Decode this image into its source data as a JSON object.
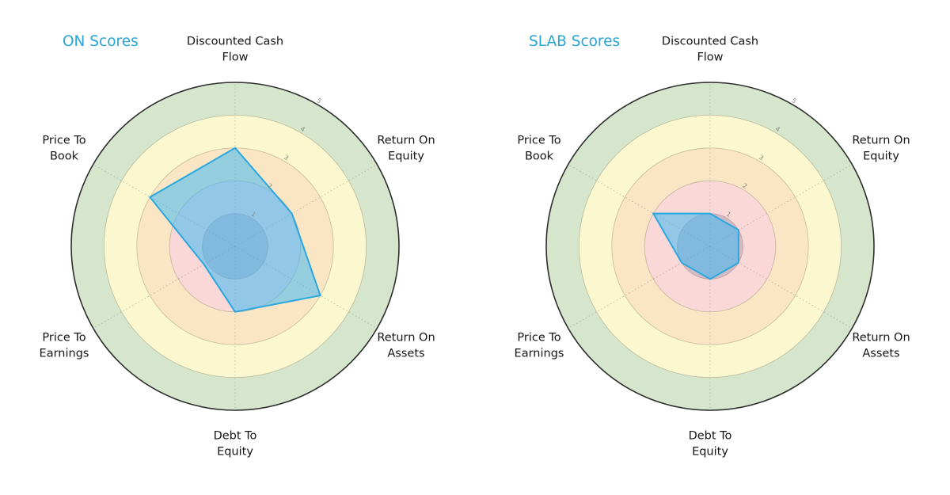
{
  "chart_data": {
    "type": "radar",
    "categories": [
      "Discounted Cash Flow",
      "Return On Equity",
      "Return On Assets",
      "Debt To Equity",
      "Price To Earnings",
      "Price To Book"
    ],
    "series": [
      {
        "name": "ON",
        "values": [
          3,
          2,
          3,
          2,
          1.1,
          3
        ]
      },
      {
        "name": "SLAB",
        "values": [
          1,
          1,
          1,
          1,
          1,
          2
        ]
      }
    ],
    "rlim": [
      0,
      5
    ],
    "rticks": [
      "1",
      "2",
      "3",
      "4",
      "5"
    ],
    "rtick_angle_deg": 30,
    "rings": [
      {
        "from": 0,
        "to": 2,
        "color": "#f9d8d7"
      },
      {
        "from": 2,
        "to": 3,
        "color": "#fae6c5"
      },
      {
        "from": 3,
        "to": 4,
        "color": "#fbf8d0"
      },
      {
        "from": 4,
        "to": 5,
        "color": "#d6e6cd"
      }
    ],
    "center_disk": {
      "radius": 1,
      "color": "rgba(70,85,130,0.22)"
    },
    "polygon_fill": "rgba(64,186,244,0.55)",
    "polygon_stroke": "#29a8e0",
    "outer_circle_color": "#2e2e2e",
    "tick_label_color": "#8b8b80",
    "title_color": "#2aa5d5",
    "grid": "dotted spokes, ring boundaries",
    "legend_position": "none"
  },
  "charts": [
    {
      "title": "ON Scores",
      "axis_labels": [
        "Discounted Cash\nFlow",
        "Return On\nEquity",
        "Return On\nAssets",
        "Debt To\nEquity",
        "Price To\nEarnings",
        "Price To\nBook"
      ]
    },
    {
      "title": "SLAB Scores",
      "axis_labels": [
        "Discounted Cash\nFlow",
        "Return On\nEquity",
        "Return On\nAssets",
        "Debt To\nEquity",
        "Price To\nEarnings",
        "Price To\nBook"
      ]
    }
  ]
}
